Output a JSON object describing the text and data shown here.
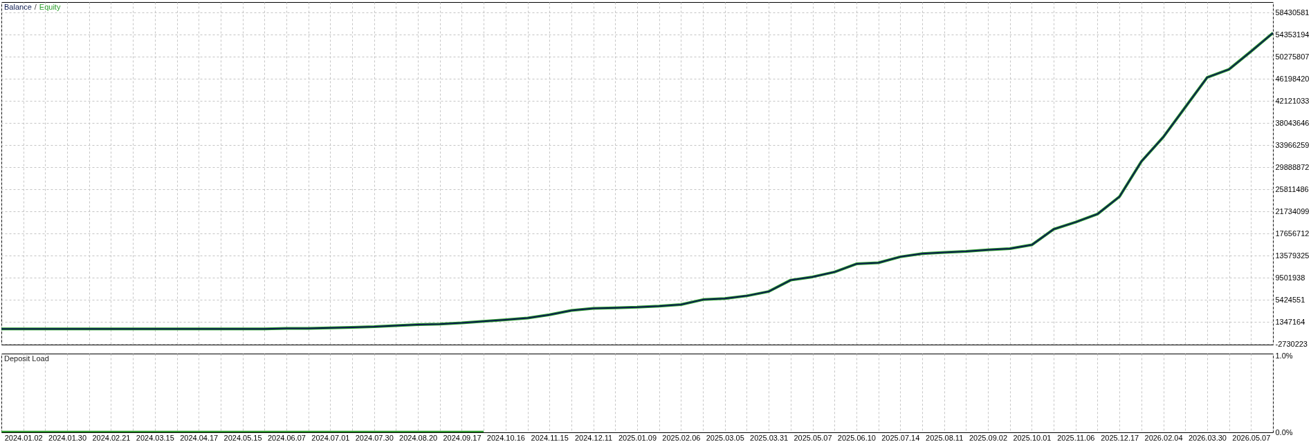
{
  "chart_data": [
    {
      "type": "line",
      "categories": [
        null,
        "2024.01.02",
        null,
        "2024.01.30",
        null,
        "2024.02.21",
        null,
        "2024.03.15",
        null,
        "2024.04.17",
        null,
        "2024.05.15",
        null,
        "2024.06.07",
        null,
        "2024.07.01",
        null,
        "2024.07.30",
        null,
        "2024.08.20",
        null,
        "2024.09.17",
        null,
        "2024.10.16",
        null,
        "2024.11.15",
        null,
        "2024.12.11",
        null,
        "2025.01.09",
        null,
        "2025.02.06",
        null,
        "2025.03.05",
        null,
        "2025.03.31",
        null,
        "2025.05.07",
        null,
        "2025.06.10",
        null,
        "2025.07.14",
        null,
        "2025.08.11",
        null,
        "2025.09.02",
        null,
        "2025.10.01",
        null,
        "2025.11.06",
        null,
        "2025.12.17",
        null,
        "2026.02.04",
        null,
        "2026.03.30",
        null,
        "2026.05.07",
        null
      ],
      "series": [
        {
          "name": "Balance",
          "color": "#0c1a50",
          "values": [
            100000,
            100000,
            100000,
            100000,
            100000,
            100000,
            100000,
            100000,
            100000,
            100000,
            100000,
            100000,
            100000,
            200000,
            200000,
            300000,
            400000,
            500000,
            700000,
            900000,
            1000000,
            1200000,
            1500000,
            1800000,
            2100000,
            2700000,
            3500000,
            3900000,
            4000000,
            4100000,
            4300000,
            4600000,
            5500000,
            5700000,
            6200000,
            7000000,
            9100000,
            9700000,
            10600000,
            12100000,
            12300000,
            13400000,
            14000000,
            14200000,
            14400000,
            14700000,
            14900000,
            15600000,
            18500000,
            19800000,
            21300000,
            24500000,
            31000000,
            35500000,
            41000000,
            46500000,
            48000000,
            51300000,
            54700000
          ]
        },
        {
          "name": "Equity",
          "color": "#2a9d2a",
          "values": [
            100000,
            100000,
            100000,
            100000,
            100000,
            100000,
            100000,
            100000,
            100000,
            100000,
            100000,
            100000,
            100000,
            200000,
            200000,
            300000,
            400000,
            500000,
            700000,
            900000,
            1000000,
            1200000,
            1500000,
            1800000,
            2100000,
            2700000,
            3500000,
            3900000,
            4000000,
            4100000,
            4300000,
            4600000,
            5500000,
            5700000,
            6200000,
            7000000,
            9100000,
            9700000,
            10600000,
            12100000,
            12300000,
            13400000,
            14000000,
            14200000,
            14400000,
            14700000,
            14900000,
            15600000,
            18500000,
            19800000,
            21300000,
            24500000,
            31000000,
            35500000,
            41000000,
            46500000,
            48000000,
            51300000,
            54700000
          ]
        }
      ],
      "ylim": [
        -2800000,
        60400000
      ],
      "yticks": [
        -2730223,
        1347164,
        5424551,
        9501938,
        13579325,
        17656712,
        21734099,
        25811486,
        29888872,
        33966259,
        38043646,
        42121033,
        46198420,
        50275807,
        54353194,
        58430581
      ],
      "grid": true,
      "legend": "top left",
      "annotations": [
        "/"
      ],
      "tick_labels": "y"
    },
    {
      "type": "area",
      "title": "Deposit Load",
      "categories": [
        null,
        "2024.01.02",
        null,
        "2024.01.30",
        null,
        "2024.02.21",
        null,
        "2024.03.15",
        null,
        "2024.04.17",
        null,
        "2024.05.15",
        null,
        "2024.06.07",
        null,
        "2024.07.01",
        null,
        "2024.07.30",
        null,
        "2024.08.20",
        null,
        "2024.09.17",
        null,
        "2024.10.16",
        null,
        "2024.11.15",
        null,
        "2024.12.11",
        null,
        "2025.01.09",
        null,
        "2025.02.06",
        null,
        "2025.03.05",
        null,
        "2025.03.31",
        null,
        "2025.05.07",
        null,
        "2025.06.10",
        null,
        "2025.07.14",
        null,
        "2025.08.11",
        null,
        "2025.09.02",
        null,
        "2025.10.01",
        null,
        "2025.11.06",
        null,
        "2025.12.17",
        null,
        "2026.02.04",
        null,
        "2026.03.30",
        null,
        "2026.05.07",
        null
      ],
      "color": "#2f9a2f",
      "values": [
        0.02,
        0.02,
        0.02,
        0.02,
        0.02,
        0.02,
        0.02,
        0.02,
        0.02,
        0.02,
        0.02,
        0.02,
        0.02,
        0.02,
        0.02,
        0.02,
        0.02,
        0.02,
        0.02,
        0.02,
        0.02,
        0.02,
        0.02,
        null,
        null,
        null,
        null,
        null,
        null,
        null,
        null,
        null,
        null,
        null,
        null,
        null,
        null,
        null,
        null,
        null,
        null,
        null,
        null,
        null,
        null,
        null,
        null,
        null,
        null,
        null,
        null,
        null,
        null,
        null,
        null,
        null,
        null,
        null,
        null
      ],
      "ylim": [
        0,
        1.03
      ],
      "yticks": [
        {
          "value": 1,
          "label": "1.0%"
        },
        {
          "value": 0,
          "label": "0.0%"
        }
      ],
      "grid": "x"
    }
  ]
}
